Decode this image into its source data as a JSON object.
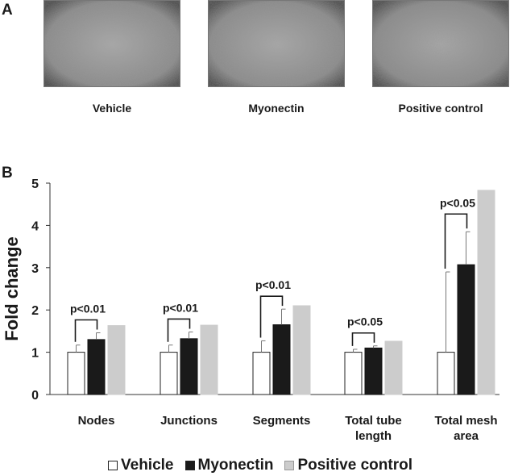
{
  "panels": {
    "a_label": "A",
    "b_label": "B"
  },
  "micrographs": [
    {
      "label": "Vehicle"
    },
    {
      "label": "Myonectin"
    },
    {
      "label": "Positive control"
    }
  ],
  "colors": {
    "vehicle": "#ffffff",
    "myonectin": "#1a1a1a",
    "positive_control": "#cccccc",
    "micrograph_bg": "#8c8c8c"
  },
  "chart_data": {
    "type": "bar",
    "ylabel": "Fold change",
    "ylim": [
      0,
      5
    ],
    "yticks": [
      0,
      1,
      2,
      3,
      4,
      5
    ],
    "grid": false,
    "legend_position": "bottom",
    "categories": [
      "Nodes",
      "Junctions",
      "Segments",
      "Total tube length",
      "Total mesh area"
    ],
    "series": [
      {
        "name": "Vehicle",
        "values": [
          1.0,
          1.0,
          1.0,
          1.0,
          1.0
        ],
        "errors": [
          0.17,
          0.17,
          0.27,
          0.07,
          1.9
        ]
      },
      {
        "name": "Myonectin",
        "values": [
          1.3,
          1.32,
          1.65,
          1.1,
          3.07
        ],
        "errors": [
          0.16,
          0.16,
          0.37,
          0.05,
          0.78
        ]
      },
      {
        "name": "Positive control",
        "values": [
          1.63,
          1.64,
          2.1,
          1.26,
          4.83
        ],
        "errors": [
          0,
          0,
          0,
          0,
          0
        ]
      }
    ],
    "annotations": [
      "p<0.01",
      "p<0.01",
      "p<0.01",
      "p<0.05",
      "p<0.05"
    ]
  }
}
